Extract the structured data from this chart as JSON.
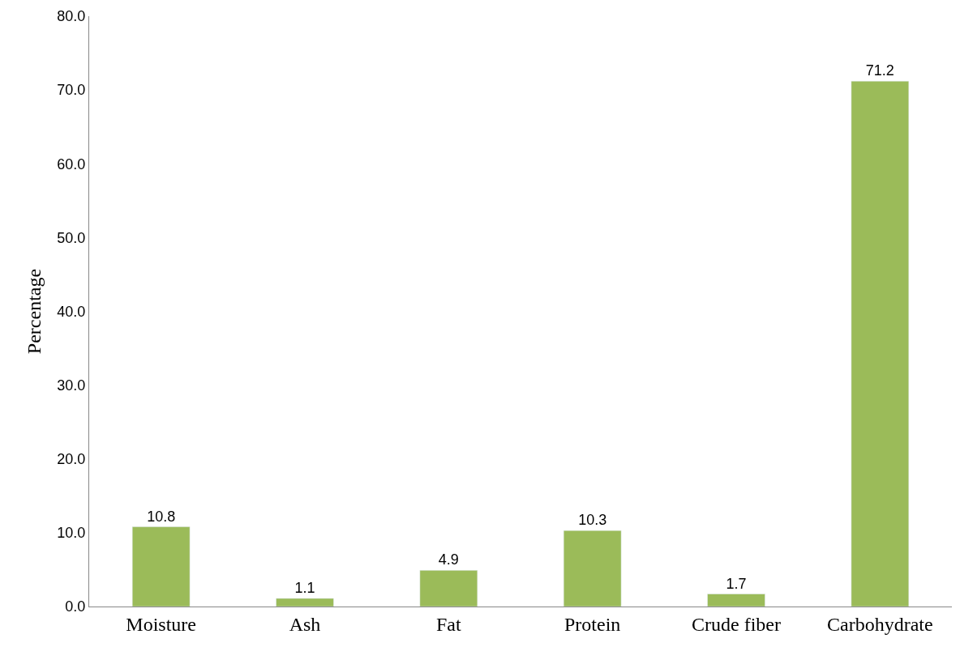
{
  "chart_data": {
    "type": "bar",
    "ylabel": "Percentage",
    "categories": [
      "Moisture",
      "Ash",
      "Fat",
      "Protein",
      "Crude fiber",
      "Carbohydrate"
    ],
    "values": [
      10.8,
      1.1,
      4.9,
      10.3,
      1.7,
      71.2
    ],
    "color": "#9bbb59",
    "ylim": [
      0,
      80
    ],
    "yticks": [
      {
        "value": 0,
        "label": "0.0"
      },
      {
        "value": 10,
        "label": "10.0"
      },
      {
        "value": 20,
        "label": "20.0"
      },
      {
        "value": 30,
        "label": "30.0"
      },
      {
        "value": 40,
        "label": "40.0"
      },
      {
        "value": 50,
        "label": "50.0"
      },
      {
        "value": 60,
        "label": "60.0"
      },
      {
        "value": 70,
        "label": "70.0"
      },
      {
        "value": 80,
        "label": "80.0"
      }
    ],
    "data_labels": true
  }
}
